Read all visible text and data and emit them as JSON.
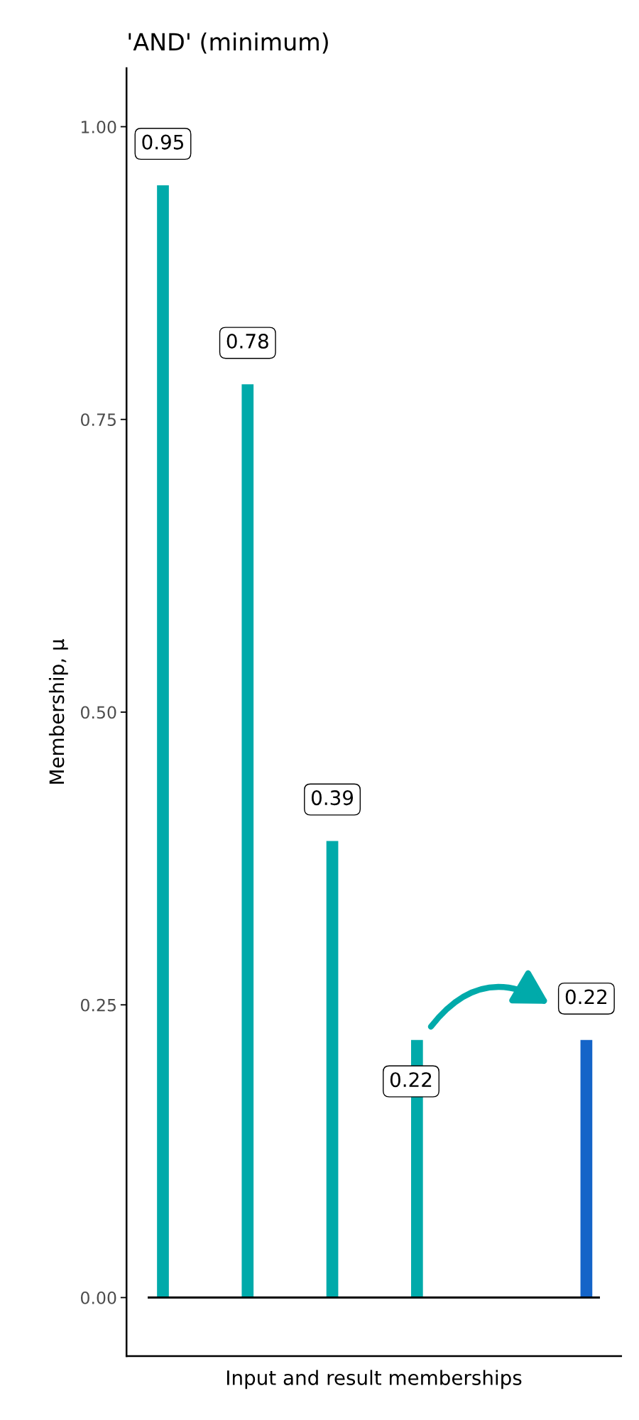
{
  "chart_data": {
    "type": "bar",
    "title": "'AND' (minimum)",
    "xlabel": "Input and result memberships",
    "ylabel": "Membership, μ",
    "categories": [
      null,
      null,
      null,
      null,
      null,
      null
    ],
    "values": [
      0.95,
      0.78,
      0.39,
      0.22,
      null,
      0.22
    ],
    "colors": [
      "#00aaaa",
      "#00aaaa",
      "#00aaaa",
      "#00aaaa",
      "#00aaaa",
      "#1464c8"
    ],
    "ylim": [
      -0.05,
      1.05
    ],
    "yticks": [
      {
        "value": 0,
        "label": "0.00"
      },
      {
        "value": 0.25,
        "label": "0.25"
      },
      {
        "value": 0.5,
        "label": "0.50"
      },
      {
        "value": 0.75,
        "label": "0.75"
      },
      {
        "value": 1,
        "label": "1.00"
      }
    ],
    "ref_lines": [
      {
        "axis": "y",
        "value": 0,
        "color": "#000000"
      }
    ],
    "data_labels": true,
    "grid": false
  }
}
